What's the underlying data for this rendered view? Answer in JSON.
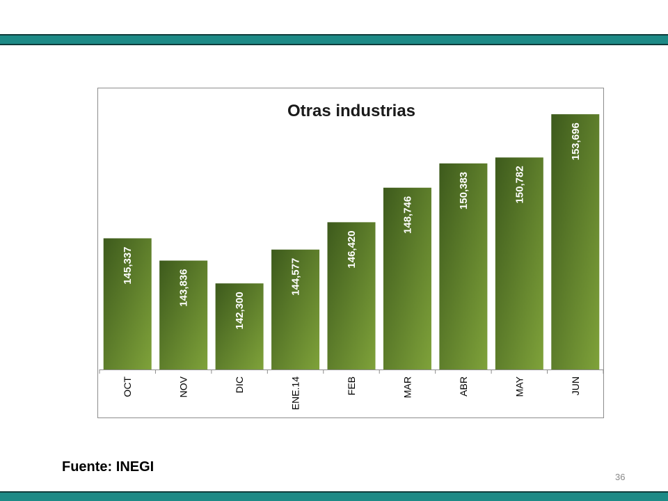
{
  "source_text": "Fuente: INEGI",
  "page_number": "36",
  "colors": {
    "band": "#1d8a86",
    "band_border": "#0f3b3a",
    "bar_dark": "#3d5a1c",
    "bar_light": "#7fa23a"
  },
  "chart_data": {
    "type": "bar",
    "title": "Otras industrias",
    "categories": [
      "OCT",
      "NOV",
      "DIC",
      "ENE.14",
      "FEB",
      "MAR",
      "ABR",
      "MAY",
      "JUN"
    ],
    "values": [
      145337,
      143836,
      142300,
      144577,
      146420,
      148746,
      150383,
      150782,
      153696
    ],
    "value_labels": [
      "145,337",
      "143,836",
      "142,300",
      "144,577",
      "146,420",
      "148,746",
      "150,383",
      "150,782",
      "153,696"
    ],
    "xlabel": "",
    "ylabel": "",
    "ylim": [
      136500,
      154500
    ],
    "grid": false,
    "legend": "none"
  }
}
